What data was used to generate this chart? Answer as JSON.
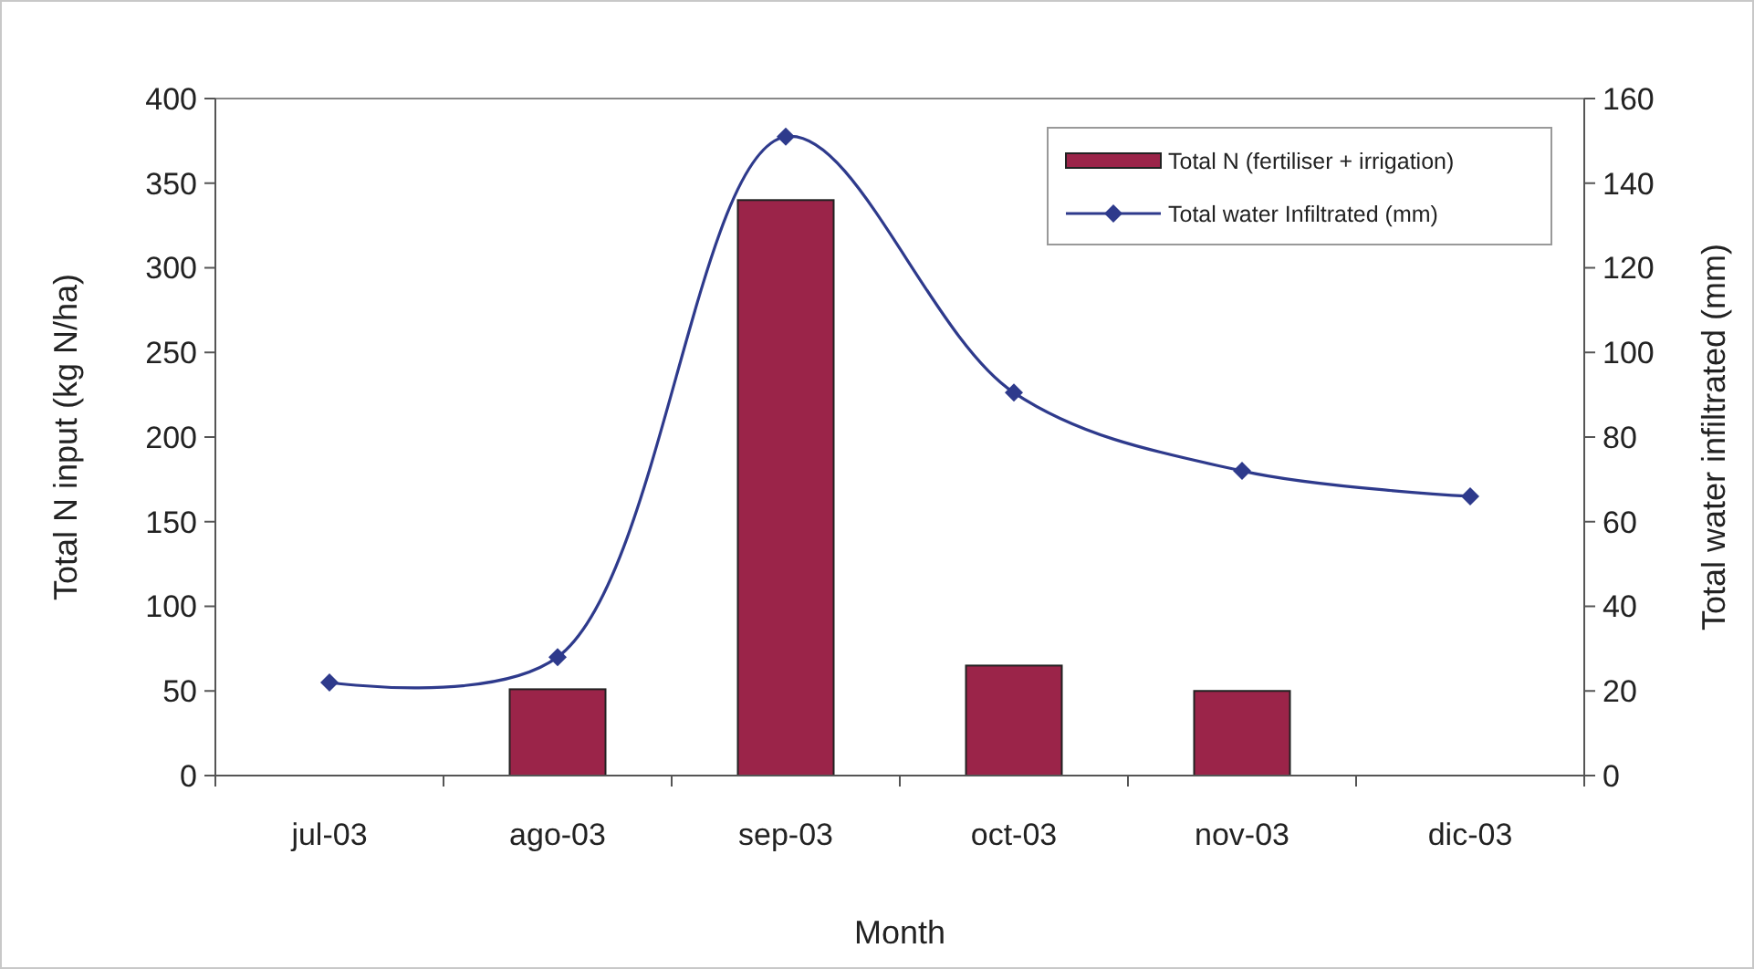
{
  "chart_data": {
    "type": "bar",
    "xlabel": "Month",
    "ylabel": "Total N input (kg N/ha)",
    "y2label": "Total water infiltrated (mm)",
    "categories": [
      "jul-03",
      "ago-03",
      "sep-03",
      "oct-03",
      "nov-03",
      "dic-03"
    ],
    "series": [
      {
        "name": "Total N (fertiliser + irrigation)",
        "color": "#9b2449",
        "values": [
          null,
          51,
          340,
          65,
          50,
          null
        ]
      },
      {
        "name": "Total water Infiltrated (mm)",
        "type": "line",
        "axis": "y2",
        "color": "#2e3a8c",
        "marker": "diamond",
        "values": [
          22,
          28,
          151,
          90.5,
          72,
          66
        ]
      }
    ],
    "ylim": [
      0,
      400
    ],
    "yticks": [
      0,
      50,
      100,
      150,
      200,
      250,
      300,
      350,
      400
    ],
    "y2lim": [
      0,
      160
    ],
    "y2ticks": [
      0,
      20,
      40,
      60,
      80,
      100,
      120,
      140,
      160
    ],
    "legend": "top right",
    "grid": false
  }
}
